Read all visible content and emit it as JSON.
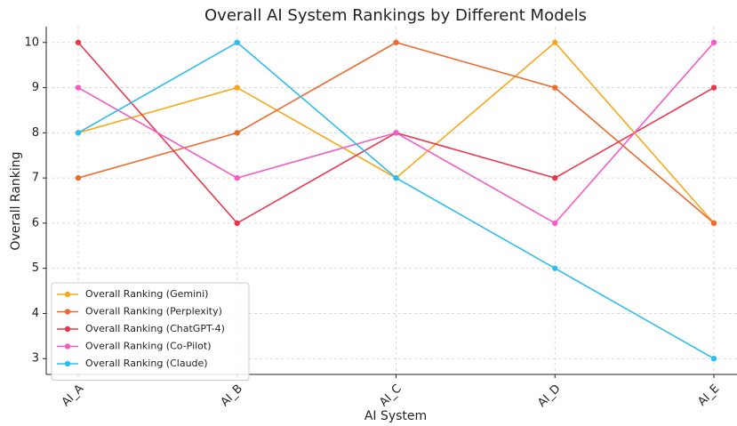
{
  "chart_data": {
    "type": "line",
    "title": "Overall AI System Rankings by Different Models",
    "x_label": "AI System",
    "y_label": "Overall Ranking",
    "categories": [
      "AI_A",
      "AI_B",
      "AI_C",
      "AI_D",
      "AI_E"
    ],
    "series": [
      {
        "name": "Overall Ranking (Gemini)",
        "color": "#f7a81b",
        "values": [
          8,
          9,
          7,
          10,
          6
        ]
      },
      {
        "name": "Overall Ranking (Perplexity)",
        "color": "#ec6b2d",
        "values": [
          7,
          8,
          10,
          9,
          6
        ]
      },
      {
        "name": "Overall Ranking (ChatGPT-4)",
        "color": "#e8384f",
        "values": [
          10,
          6,
          8,
          7,
          9
        ]
      },
      {
        "name": "Overall Ranking (Co-Pilot)",
        "color": "#f25cc4",
        "values": [
          9,
          7,
          8,
          6,
          10
        ]
      },
      {
        "name": "Overall Ranking (Claude)",
        "color": "#2fbdf0",
        "values": [
          8,
          10,
          7,
          5,
          3
        ]
      }
    ],
    "ylim": [
      2.65,
      10.35
    ],
    "yticks": [
      3,
      4,
      5,
      6,
      7,
      8,
      9,
      10
    ],
    "grid": true,
    "legend": "lower left"
  }
}
